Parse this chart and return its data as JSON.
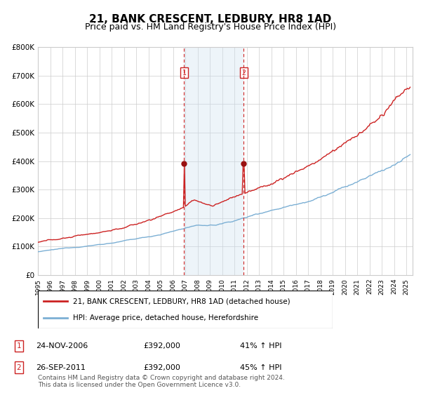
{
  "title": "21, BANK CRESCENT, LEDBURY, HR8 1AD",
  "subtitle": "Price paid vs. HM Land Registry's House Price Index (HPI)",
  "title_fontsize": 11,
  "subtitle_fontsize": 9,
  "sale1_date_str": "24-NOV-2006",
  "sale1_date_num": 2006.9,
  "sale1_price": 392000,
  "sale1_label": "41% ↑ HPI",
  "sale2_date_str": "26-SEP-2011",
  "sale2_date_num": 2011.75,
  "sale2_price": 392000,
  "sale2_label": "45% ↑ HPI",
  "hpi_line_color": "#7bafd4",
  "price_line_color": "#cc2222",
  "marker_color": "#991111",
  "highlight_color": "#cce0f0",
  "vline_color": "#cc2222",
  "grid_color": "#cccccc",
  "background_color": "#ffffff",
  "ylim": [
    0,
    800000
  ],
  "xlim_start": 1995.0,
  "xlim_end": 2025.5,
  "yticks": [
    0,
    100000,
    200000,
    300000,
    400000,
    500000,
    600000,
    700000,
    800000
  ],
  "ytick_labels": [
    "£0",
    "£100K",
    "£200K",
    "£300K",
    "£400K",
    "£500K",
    "£600K",
    "£700K",
    "£800K"
  ],
  "xticks": [
    1995,
    1996,
    1997,
    1998,
    1999,
    2000,
    2001,
    2002,
    2003,
    2004,
    2005,
    2006,
    2007,
    2008,
    2009,
    2010,
    2011,
    2012,
    2013,
    2014,
    2015,
    2016,
    2017,
    2018,
    2019,
    2020,
    2021,
    2022,
    2023,
    2024,
    2025
  ],
  "legend_price_label": "21, BANK CRESCENT, LEDBURY, HR8 1AD (detached house)",
  "legend_hpi_label": "HPI: Average price, detached house, Herefordshire",
  "footnote": "Contains HM Land Registry data © Crown copyright and database right 2024.\nThis data is licensed under the Open Government Licence v3.0.",
  "footnote_fontsize": 6.5
}
